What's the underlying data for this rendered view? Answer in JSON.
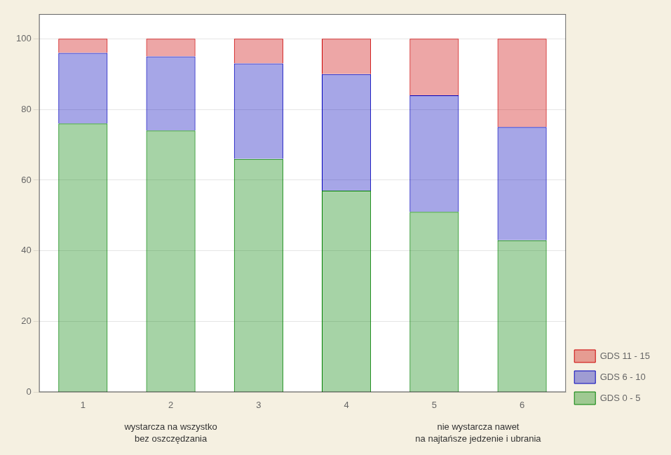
{
  "chart_data": {
    "type": "bar",
    "stacked": true,
    "categories": [
      "1",
      "2",
      "3",
      "4",
      "5",
      "6"
    ],
    "series": [
      {
        "name": "GDS 0 - 5",
        "color": "#008000",
        "values": [
          76,
          74,
          66,
          57,
          51,
          43
        ]
      },
      {
        "name": "GDS 6 - 10",
        "color": "#0000bb",
        "values": [
          20,
          21,
          27,
          33,
          33,
          32
        ]
      },
      {
        "name": "GDS 11 - 15",
        "color": "#cc0000",
        "values": [
          4,
          5,
          7,
          10,
          16,
          25
        ]
      }
    ],
    "ylim": [
      0,
      107
    ],
    "yticks": [
      0,
      20,
      40,
      60,
      80,
      100
    ],
    "grid": true,
    "legend": "lower right",
    "annotations": [
      "wystarcza na wszystko\nbez oszczędzania",
      "nie wystarcza nawet\nna najtańsze jedzenie i ubrania"
    ]
  }
}
